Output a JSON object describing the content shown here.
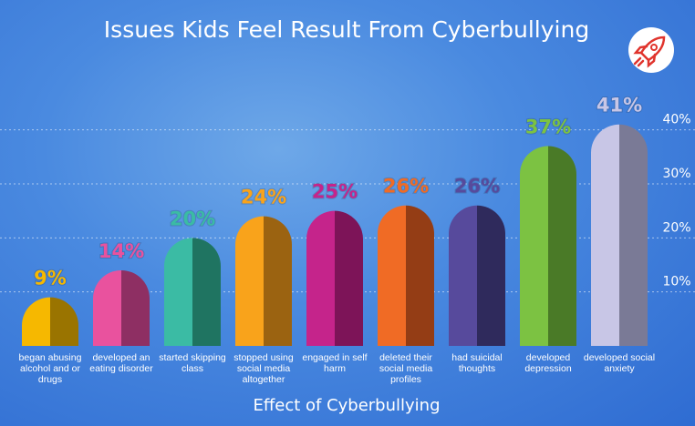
{
  "chart_data": {
    "type": "bar",
    "title": "Issues Kids Feel Result From Cyberbullying",
    "x_label": "Effect of Cyberbullying",
    "categories": [
      "began abusing alcohol and or drugs",
      "developed an eating disorder",
      "started skipping class",
      "stopped using social media altogether",
      "engaged in self harm",
      "deleted their social media profiles",
      "had suicidal thoughts",
      "developed depression",
      "developed social anxiety"
    ],
    "values": [
      9,
      14,
      20,
      24,
      25,
      26,
      26,
      37,
      41
    ],
    "value_labels": [
      "9%",
      "14%",
      "20%",
      "24%",
      "25%",
      "26%",
      "26%",
      "37%",
      "41%"
    ],
    "colors": [
      "#f6b800",
      "#e9529e",
      "#3bbba4",
      "#f9a31b",
      "#c5248b",
      "#f06b25",
      "#574a9c",
      "#7cc242",
      "#c8c6e6"
    ],
    "shade_colors": [
      "#9a7400",
      "#8e2f63",
      "#1f7461",
      "#9b6311",
      "#7d1458",
      "#943d15",
      "#2f2a5c",
      "#4a7a27",
      "#7a7a96"
    ],
    "ylim": [
      0,
      45
    ],
    "yticks": [
      {
        "value": 10,
        "label": "10%"
      },
      {
        "value": 20,
        "label": "20%"
      },
      {
        "value": 30,
        "label": "30%"
      },
      {
        "value": 40,
        "label": "40%"
      }
    ],
    "grid": true
  }
}
